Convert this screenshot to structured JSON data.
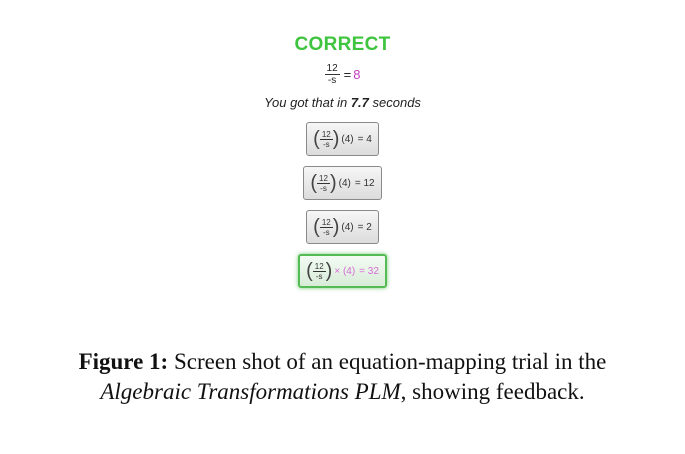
{
  "feedback": {
    "status": "CORRECT",
    "equation": {
      "numerator": "12",
      "denominator": "-s",
      "rest": "=",
      "value": "8"
    },
    "time": {
      "prefix": "You got that in",
      "value": "7.7",
      "suffix": "seconds"
    }
  },
  "options": [
    {
      "numerator": "12",
      "denominator": "-s",
      "multiplier": "(4)",
      "result": "= 4",
      "selected": false
    },
    {
      "numerator": "12",
      "denominator": "-s",
      "multiplier": "(4)",
      "result": "= 12",
      "selected": false
    },
    {
      "numerator": "12",
      "denominator": "-s",
      "multiplier": "(4)",
      "result": "= 2",
      "selected": false
    },
    {
      "numerator": "12",
      "denominator": "-s",
      "multiplier": "× (4)",
      "result": "= 32",
      "selected": true
    }
  ],
  "caption": {
    "label": "Figure 1:",
    "text1": "Screen shot of an equation-mapping trial in the",
    "italic": "Algebraic Transformations PLM",
    "text2": ", showing feedback."
  }
}
